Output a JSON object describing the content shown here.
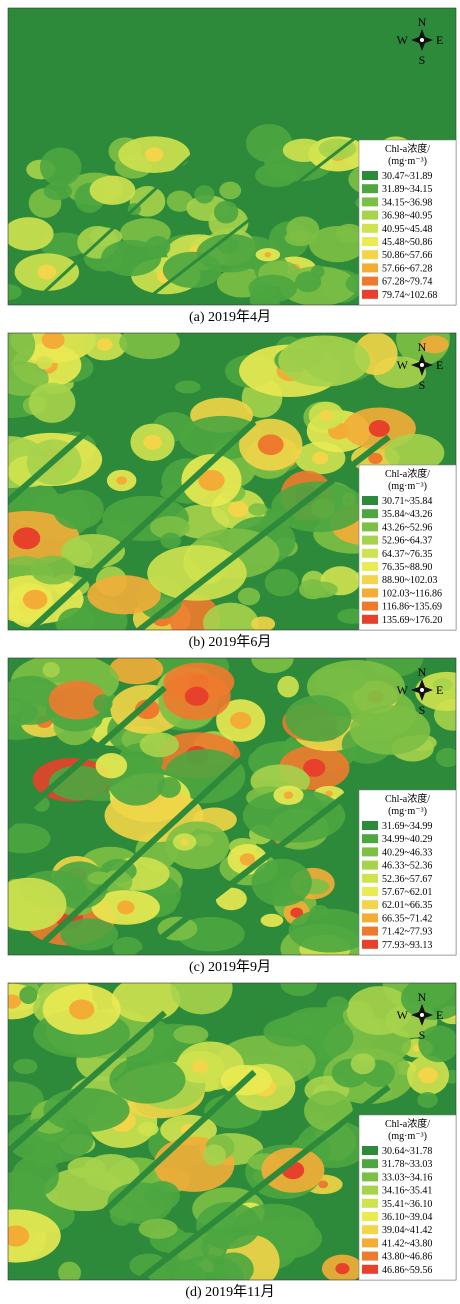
{
  "compass": {
    "north": "N",
    "west": "W",
    "east": "E",
    "south": "S"
  },
  "colors": [
    "#2e8a3b",
    "#4da640",
    "#7cbf45",
    "#a6d34c",
    "#cfe24f",
    "#eaea52",
    "#f2d548",
    "#f3ad37",
    "#ee7a2d",
    "#e7402b"
  ],
  "panels": [
    {
      "caption": "(a) 2019年4月",
      "legend": {
        "title": "Chl-a浓度/",
        "unit": "(mg·m⁻³)",
        "classes": [
          "30.47~31.89",
          "31.89~34.15",
          "34.15~36.98",
          "36.98~40.95",
          "40.95~45.48",
          "45.48~50.86",
          "50.86~57.66",
          "57.66~67.28",
          "67.28~79.74",
          "79.74~102.68"
        ]
      }
    },
    {
      "caption": "(b) 2019年6月",
      "legend": {
        "title": "Chl-a浓度/",
        "unit": "(mg·m⁻³)",
        "classes": [
          "30.71~35.84",
          "35.84~43.26",
          "43.26~52.96",
          "52.96~64.37",
          "64.37~76.35",
          "76.35~88.90",
          "88.90~102.03",
          "102.03~116.86",
          "116.86~135.69",
          "135.69~176.20"
        ]
      }
    },
    {
      "caption": "(c) 2019年9月",
      "legend": {
        "title": "Chl-a浓度/",
        "unit": "(mg·m⁻³)",
        "classes": [
          "31.69~34.99",
          "34.99~40.29",
          "40.29~46.33",
          "46.33~52.36",
          "52.36~57.67",
          "57.67~62.01",
          "62.01~66.35",
          "66.35~71.42",
          "71.42~77.93",
          "77.93~93.13"
        ]
      }
    },
    {
      "caption": "(d) 2019年11月",
      "legend": {
        "title": "Chl-a浓度/",
        "unit": "(mg·m⁻³)",
        "classes": [
          "30.64~31.78",
          "31.78~33.03",
          "33.03~34.16",
          "34.16~35.41",
          "35.41~36.10",
          "36.10~39.04",
          "39.04~41.42",
          "41.42~43.80",
          "43.80~46.86",
          "46.86~59.56"
        ]
      }
    }
  ]
}
